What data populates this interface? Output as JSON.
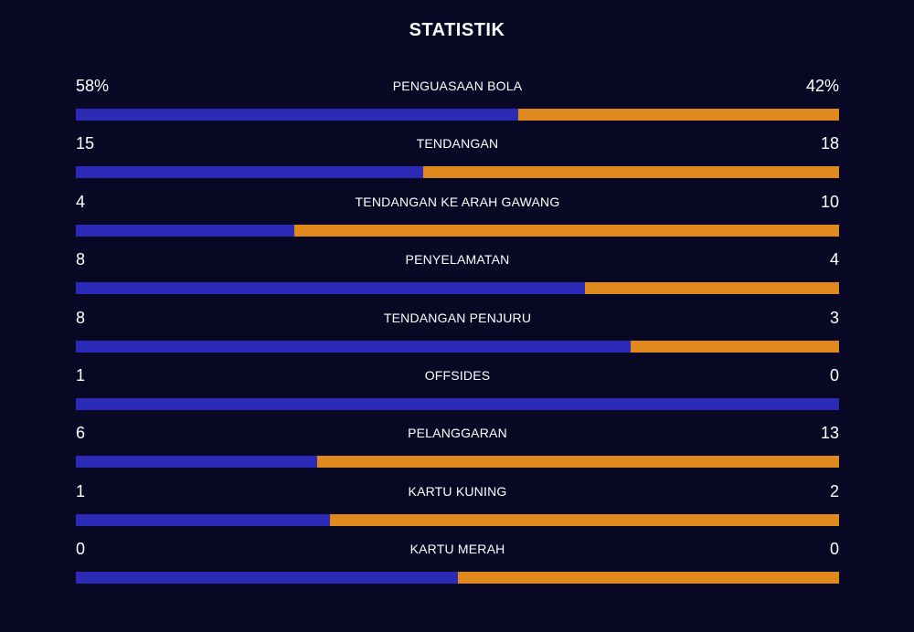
{
  "title": "STATISTIK",
  "colors": {
    "background": "#080824",
    "home": "#2b2bb8",
    "away": "#e08a1e"
  },
  "stats": [
    {
      "label": "PENGUASAAN BOLA",
      "home": "58%",
      "away": "42%",
      "home_share": 0.58
    },
    {
      "label": "TENDANGAN",
      "home": "15",
      "away": "18",
      "home_share": 0.4545
    },
    {
      "label": "TENDANGAN KE ARAH GAWANG",
      "home": "4",
      "away": "10",
      "home_share": 0.2857
    },
    {
      "label": "PENYELAMATAN",
      "home": "8",
      "away": "4",
      "home_share": 0.6667
    },
    {
      "label": "TENDANGAN PENJURU",
      "home": "8",
      "away": "3",
      "home_share": 0.7273
    },
    {
      "label": "OFFSIDES",
      "home": "1",
      "away": "0",
      "home_share": 1.0
    },
    {
      "label": "PELANGGARAN",
      "home": "6",
      "away": "13",
      "home_share": 0.3158
    },
    {
      "label": "KARTU KUNING",
      "home": "1",
      "away": "2",
      "home_share": 0.3333
    },
    {
      "label": "KARTU MERAH",
      "home": "0",
      "away": "0",
      "home_share": 0.5
    }
  ]
}
